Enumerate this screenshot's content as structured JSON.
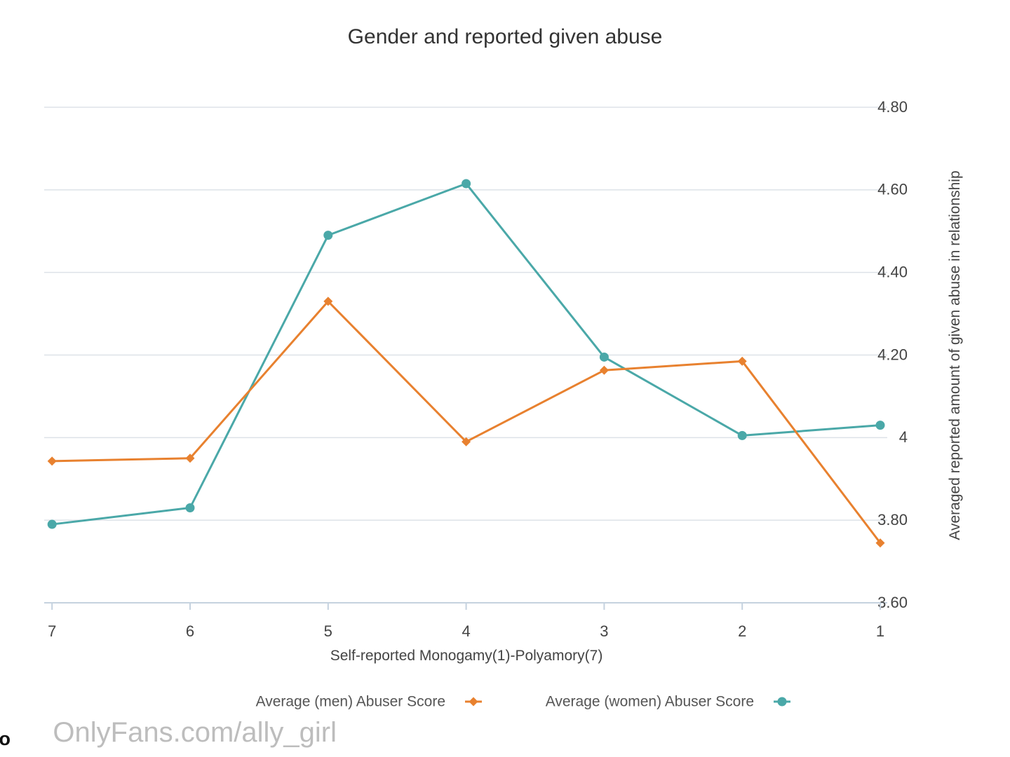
{
  "chart_data": {
    "type": "line",
    "title": "Gender and reported given abuse",
    "xlabel": "Self-reported Monogamy(1)-Polyamory(7)",
    "ylabel": "Averaged reported amount of given abuse in relationship",
    "categories": [
      "1",
      "2",
      "3",
      "4",
      "5",
      "6",
      "7"
    ],
    "ylim": [
      3.6,
      4.8
    ],
    "yticks": [
      "3.60",
      "3.80",
      "4",
      "4.20",
      "4.40",
      "4.60",
      "4.80"
    ],
    "ytick_values": [
      3.6,
      3.8,
      4.0,
      4.2,
      4.4,
      4.6,
      4.8
    ],
    "grid": true,
    "legend_position": "bottom",
    "series": [
      {
        "name": "Average (women) Abuser Score",
        "color": "#4aa8a8",
        "marker": "circle",
        "values": [
          4.03,
          4.005,
          4.195,
          4.615,
          4.49,
          3.83,
          3.79
        ]
      },
      {
        "name": "Average (men) Abuser Score",
        "color": "#e8812f",
        "marker": "diamond",
        "values": [
          3.745,
          4.185,
          4.163,
          3.99,
          4.33,
          3.95,
          3.943
        ]
      }
    ]
  },
  "branding": {
    "logo_text": "DataHero"
  },
  "watermark": {
    "text": "OnlyFans.com/ally_girl"
  }
}
